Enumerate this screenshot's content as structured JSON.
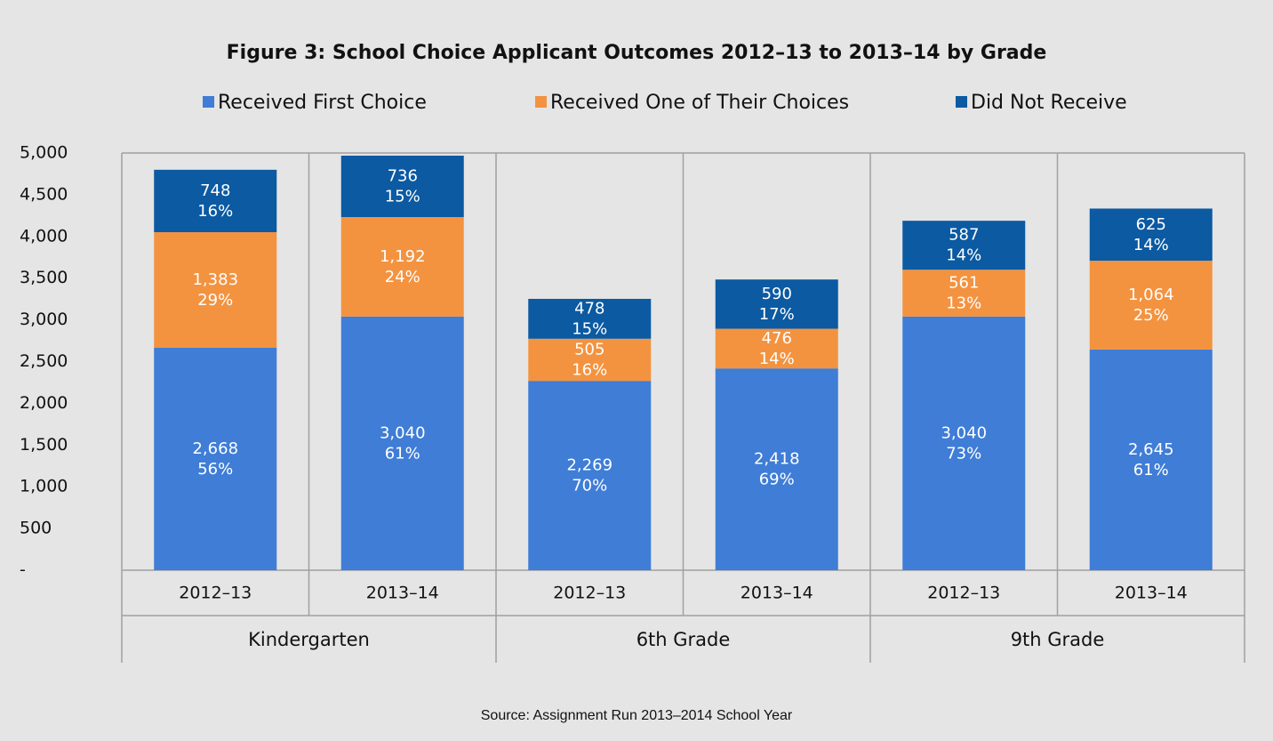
{
  "chart_data": {
    "type": "stacked_bar",
    "title": "Figure 3: School Choice Applicant Outcomes 2012–13 to 2013–14 by Grade",
    "source": "Source: Assignment Run 2013–2014 School Year",
    "categories": [
      "2012–13",
      "2013–14",
      "2012–13",
      "2013–14",
      "2012–13",
      "2013–14"
    ],
    "groups": [
      "Kindergarten",
      "6th Grade",
      "9th Grade"
    ],
    "series": [
      {
        "name": "Received First Choice",
        "color": "#3f7dd6",
        "values": [
          2668,
          3040,
          2269,
          2418,
          3040,
          2645
        ],
        "value_labels": [
          "2,668",
          "3,040",
          "2,269",
          "2,418",
          "3,040",
          "2,645"
        ],
        "shares": [
          56,
          61,
          70,
          69,
          73,
          61
        ],
        "share_labels": [
          "56%",
          "61%",
          "70%",
          "69%",
          "73%",
          "61%"
        ]
      },
      {
        "name": "Received One of Their Choices",
        "color": "#f39340",
        "values": [
          1383,
          1192,
          505,
          476,
          561,
          1064
        ],
        "value_labels": [
          "1,383",
          "1,192",
          "505",
          "476",
          "561",
          "1,064"
        ],
        "shares": [
          29,
          24,
          16,
          14,
          13,
          25
        ],
        "share_labels": [
          "29%",
          "24%",
          "16%",
          "14%",
          "13%",
          "25%"
        ]
      },
      {
        "name": "Did Not Receive",
        "color": "#0b5aa2",
        "values": [
          748,
          736,
          478,
          590,
          587,
          625
        ],
        "value_labels": [
          "748",
          "736",
          "478",
          "590",
          "587",
          "625"
        ],
        "shares": [
          16,
          15,
          15,
          17,
          14,
          14
        ],
        "share_labels": [
          "16%",
          "15%",
          "15%",
          "17%",
          "14%",
          "14%"
        ]
      }
    ],
    "ylim": [
      0,
      5000
    ],
    "yticks": [
      {
        "value": 0,
        "label": "-"
      },
      500,
      {
        "value": 1000,
        "label": "1,000"
      },
      {
        "value": 1500,
        "label": "1,500"
      },
      {
        "value": 2000,
        "label": "2,000"
      },
      {
        "value": 2500,
        "label": "2,500"
      },
      {
        "value": 3000,
        "label": "3,000"
      },
      {
        "value": 3500,
        "label": "3,500"
      },
      {
        "value": 4000,
        "label": "4,000"
      },
      {
        "value": 4500,
        "label": "4,500"
      },
      {
        "value": 5000,
        "label": "5,000"
      }
    ],
    "legend": "top"
  }
}
